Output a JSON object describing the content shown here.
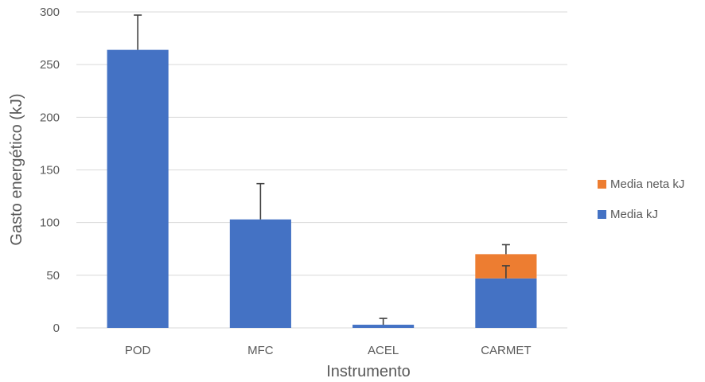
{
  "chart_data": {
    "type": "bar",
    "stacked": true,
    "categories": [
      "POD",
      "MFC",
      "ACEL",
      "CARMET"
    ],
    "series": [
      {
        "name": "Media kJ",
        "color": "#4472c4",
        "values": [
          264,
          103,
          3,
          47
        ],
        "error_plus": [
          33,
          34,
          6,
          12
        ]
      },
      {
        "name": "Media neta kJ",
        "color": "#ed7d31",
        "values": [
          0,
          0,
          0,
          23
        ],
        "error_plus": [
          null,
          null,
          null,
          9
        ]
      }
    ],
    "xlabel": "Instrumento",
    "ylabel": "Gasto energético (kJ)",
    "ylim": [
      0,
      300
    ],
    "yticks": [
      0,
      50,
      100,
      150,
      200,
      250,
      300
    ],
    "grid": true,
    "legend_position": "right"
  }
}
